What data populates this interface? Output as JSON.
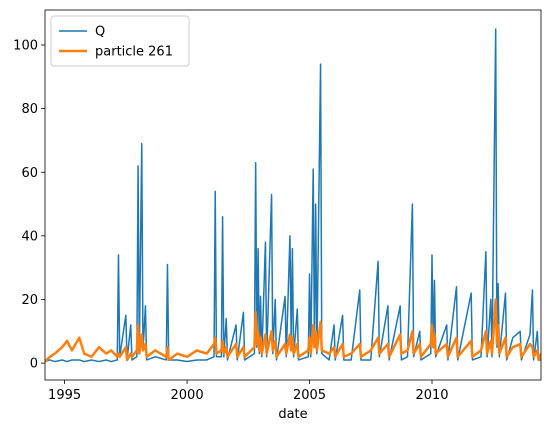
{
  "chart_data": {
    "type": "line",
    "x_label": "date",
    "x": [
      1994.2,
      1994.4,
      1994.6,
      1994.9,
      1995.1,
      1995.3,
      1995.6,
      1995.8,
      1996.1,
      1996.4,
      1996.7,
      1996.9,
      1997.15,
      1997.2,
      1997.25,
      1997.5,
      1997.55,
      1997.7,
      1997.75,
      1997.95,
      1998.0,
      1998.05,
      1998.15,
      1998.2,
      1998.3,
      1998.35,
      1998.7,
      1999.15,
      1999.2,
      1999.25,
      1999.6,
      2000.0,
      2000.4,
      2000.8,
      2001.1,
      2001.15,
      2001.2,
      2001.4,
      2001.45,
      2001.5,
      2001.6,
      2001.65,
      2002.0,
      2002.05,
      2002.3,
      2002.35,
      2002.75,
      2002.8,
      2002.85,
      2002.9,
      2002.95,
      2003.0,
      2003.05,
      2003.2,
      2003.25,
      2003.45,
      2003.5,
      2003.6,
      2003.65,
      2004.0,
      2004.05,
      2004.2,
      2004.25,
      2004.3,
      2004.35,
      2004.5,
      2004.55,
      2004.95,
      2005.0,
      2005.05,
      2005.15,
      2005.2,
      2005.25,
      2005.3,
      2005.45,
      2005.5,
      2005.8,
      2006.0,
      2006.05,
      2006.35,
      2006.4,
      2006.7,
      2007.05,
      2007.1,
      2007.5,
      2007.8,
      2007.85,
      2008.2,
      2008.25,
      2008.7,
      2008.75,
      2009.0,
      2009.2,
      2009.25,
      2009.5,
      2009.55,
      2009.95,
      2010.0,
      2010.05,
      2010.1,
      2010.15,
      2010.6,
      2010.65,
      2011.0,
      2011.05,
      2011.6,
      2011.65,
      2012.0,
      2012.2,
      2012.25,
      2012.4,
      2012.45,
      2012.6,
      2012.65,
      2012.7,
      2012.75,
      2013.0,
      2013.05,
      2013.3,
      2013.6,
      2013.65,
      2014.0,
      2014.1,
      2014.15,
      2014.3,
      2014.35,
      2014.45
    ],
    "series": [
      {
        "name": "Q",
        "color": "#1f77b4",
        "width": 1.5,
        "values": [
          0.5,
          1,
          0.5,
          1,
          0.5,
          1,
          1,
          0.5,
          1,
          0.5,
          1,
          0.5,
          1,
          34,
          2,
          15,
          1,
          12,
          1,
          2,
          62,
          3,
          69,
          4,
          18,
          1,
          2,
          1,
          31,
          1,
          1,
          0.5,
          1,
          1,
          2,
          54,
          2,
          2,
          46,
          2,
          14,
          1,
          12,
          1,
          16,
          1,
          3,
          63,
          5,
          36,
          3,
          21,
          2,
          38,
          2,
          53,
          3,
          20,
          1,
          21,
          2,
          40,
          8,
          36,
          2,
          17,
          1,
          2,
          28,
          2,
          61,
          5,
          50,
          3,
          94,
          3,
          1,
          12,
          1,
          15,
          1,
          1,
          23,
          1,
          1,
          32,
          2,
          18,
          1,
          18,
          1,
          2,
          50,
          2,
          10,
          1,
          3,
          34,
          5,
          26,
          2,
          12,
          1,
          24,
          1,
          22,
          1,
          2,
          35,
          2,
          20,
          2,
          105,
          5,
          25,
          2,
          22,
          1,
          8,
          10,
          1,
          9,
          23,
          1,
          10,
          1,
          1
        ]
      },
      {
        "name": "particle 261",
        "color": "#ff7f0e",
        "width": 2.5,
        "values": [
          0.5,
          2,
          3,
          5,
          7,
          4,
          8,
          3,
          2,
          5,
          3,
          4,
          2,
          3,
          2,
          5,
          1,
          3,
          2,
          4,
          12,
          3,
          9,
          4,
          6,
          2,
          4,
          2,
          5,
          1,
          3,
          2,
          4,
          3,
          6,
          8,
          3,
          4,
          7,
          3,
          5,
          2,
          6,
          2,
          5,
          2,
          5,
          16,
          6,
          10,
          4,
          8,
          3,
          9,
          3,
          10,
          4,
          7,
          2,
          6,
          3,
          9,
          4,
          8,
          3,
          6,
          2,
          4,
          8,
          3,
          12,
          5,
          10,
          4,
          13,
          4,
          3,
          5,
          2,
          6,
          2,
          3,
          6,
          2,
          4,
          8,
          3,
          6,
          2,
          9,
          3,
          4,
          10,
          3,
          6,
          2,
          6,
          12,
          5,
          9,
          3,
          6,
          2,
          8,
          2,
          7,
          2,
          4,
          10,
          3,
          7,
          3,
          20,
          6,
          12,
          3,
          8,
          2,
          5,
          6,
          2,
          6,
          5,
          2,
          4,
          1,
          3
        ]
      }
    ],
    "xlim": [
      1994.2,
      2014.45
    ],
    "xticks": [
      1995,
      2000,
      2005,
      2010
    ],
    "ylim": [
      -5.3,
      111
    ],
    "yticks": [
      0,
      20,
      40,
      60,
      80,
      100
    ],
    "legend": "upper left"
  }
}
